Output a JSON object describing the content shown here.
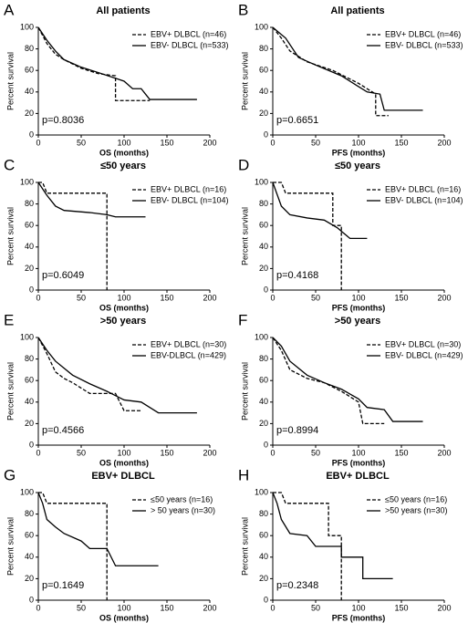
{
  "chart_data": [
    {
      "type": "line",
      "panel_label": "A",
      "title": "All patients",
      "x_label": "OS (months)",
      "y_label": "Percent survival",
      "annotation": "p=0.8036",
      "xlim": [
        0,
        200
      ],
      "ylim": [
        0,
        100
      ],
      "xticks": [
        0,
        50,
        100,
        150,
        200
      ],
      "yticks": [
        0,
        20,
        40,
        60,
        80,
        100
      ],
      "series": [
        {
          "name": "EBV+ DLBCL (n=46)",
          "color": "#000000",
          "dashed": true,
          "x": [
            0,
            10,
            20,
            30,
            50,
            70,
            90,
            90,
            130
          ],
          "values": [
            100,
            85,
            75,
            70,
            62,
            57,
            55,
            32,
            32
          ]
        },
        {
          "name": "EBV- DLBCL (n=533)",
          "color": "#000000",
          "dashed": false,
          "x": [
            0,
            10,
            20,
            30,
            50,
            70,
            100,
            110,
            120,
            125,
            130,
            185
          ],
          "values": [
            100,
            88,
            78,
            70,
            63,
            58,
            50,
            43,
            43,
            38,
            33,
            33
          ]
        }
      ]
    },
    {
      "type": "line",
      "panel_label": "B",
      "title": "All patients",
      "x_label": "PFS (months)",
      "y_label": "Percent survival",
      "annotation": "p=0.6651",
      "xlim": [
        0,
        200
      ],
      "ylim": [
        0,
        100
      ],
      "xticks": [
        0,
        50,
        100,
        150,
        200
      ],
      "yticks": [
        0,
        20,
        40,
        60,
        80,
        100
      ],
      "series": [
        {
          "name": "EBV+ DLBCL (n=46)",
          "color": "#000000",
          "dashed": true,
          "x": [
            0,
            10,
            20,
            40,
            70,
            80,
            100,
            120,
            120,
            135
          ],
          "values": [
            100,
            90,
            78,
            68,
            60,
            56,
            48,
            38,
            18,
            18
          ]
        },
        {
          "name": "EBV- DLBCL (n=533)",
          "color": "#000000",
          "dashed": false,
          "x": [
            0,
            15,
            30,
            50,
            80,
            100,
            110,
            125,
            130,
            175
          ],
          "values": [
            100,
            90,
            72,
            65,
            55,
            45,
            40,
            38,
            23,
            23
          ]
        }
      ]
    },
    {
      "type": "line",
      "panel_label": "C",
      "title": "≤50 years",
      "x_label": "OS (months)",
      "y_label": "Percent survival",
      "annotation": "p=0.6049",
      "xlim": [
        0,
        200
      ],
      "ylim": [
        0,
        100
      ],
      "xticks": [
        0,
        50,
        100,
        150,
        200
      ],
      "yticks": [
        0,
        20,
        40,
        60,
        80,
        100
      ],
      "series": [
        {
          "name": "EBV+ DLBCL (n=16)",
          "color": "#000000",
          "dashed": true,
          "x": [
            0,
            5,
            10,
            80,
            80
          ],
          "values": [
            100,
            100,
            90,
            90,
            0
          ]
        },
        {
          "name": "EBV- DLBCL (n=104)",
          "color": "#000000",
          "dashed": false,
          "x": [
            0,
            10,
            20,
            30,
            60,
            80,
            90,
            125
          ],
          "values": [
            100,
            88,
            78,
            74,
            72,
            70,
            68,
            68
          ]
        }
      ]
    },
    {
      "type": "line",
      "panel_label": "D",
      "title": "≤50 years",
      "x_label": "PFS (months)",
      "y_label": "Percent survival",
      "annotation": "p=0.4168",
      "xlim": [
        0,
        200
      ],
      "ylim": [
        0,
        100
      ],
      "xticks": [
        0,
        50,
        100,
        150,
        200
      ],
      "yticks": [
        0,
        20,
        40,
        60,
        80,
        100
      ],
      "series": [
        {
          "name": "EBV+ DLBCL (n=16)",
          "color": "#000000",
          "dashed": true,
          "x": [
            0,
            10,
            15,
            70,
            70,
            80,
            80
          ],
          "values": [
            100,
            100,
            90,
            90,
            60,
            60,
            0
          ]
        },
        {
          "name": "EBV- DLBCL (n=104)",
          "color": "#000000",
          "dashed": false,
          "x": [
            0,
            10,
            20,
            40,
            60,
            75,
            90,
            110
          ],
          "values": [
            100,
            78,
            70,
            67,
            65,
            58,
            48,
            48
          ]
        }
      ]
    },
    {
      "type": "line",
      "panel_label": "E",
      "title": ">50 years",
      "x_label": "OS (months)",
      "y_label": "Percent survival",
      "annotation": "p=0.4566",
      "xlim": [
        0,
        200
      ],
      "ylim": [
        0,
        100
      ],
      "xticks": [
        0,
        50,
        100,
        150,
        200
      ],
      "yticks": [
        0,
        20,
        40,
        60,
        80,
        100
      ],
      "series": [
        {
          "name": "EBV+ DLBCL (n=30)",
          "color": "#000000",
          "dashed": true,
          "x": [
            0,
            10,
            20,
            30,
            40,
            60,
            90,
            100,
            120
          ],
          "values": [
            100,
            85,
            68,
            62,
            58,
            48,
            48,
            32,
            32
          ]
        },
        {
          "name": "EBV-DLBCL (n=429)",
          "color": "#000000",
          "dashed": false,
          "x": [
            0,
            10,
            20,
            40,
            60,
            80,
            100,
            120,
            130,
            140,
            185
          ],
          "values": [
            100,
            88,
            78,
            65,
            57,
            50,
            42,
            40,
            35,
            30,
            30
          ]
        }
      ]
    },
    {
      "type": "line",
      "panel_label": "F",
      "title": ">50 years",
      "x_label": "PFS (months)",
      "y_label": "Percent survival",
      "annotation": "p=0.8994",
      "xlim": [
        0,
        200
      ],
      "ylim": [
        0,
        100
      ],
      "xticks": [
        0,
        50,
        100,
        150,
        200
      ],
      "yticks": [
        0,
        20,
        40,
        60,
        80,
        100
      ],
      "series": [
        {
          "name": "EBV+ DLBCL (n=30)",
          "color": "#000000",
          "dashed": true,
          "x": [
            0,
            10,
            20,
            40,
            60,
            80,
            100,
            105,
            130
          ],
          "values": [
            100,
            88,
            70,
            62,
            58,
            50,
            40,
            20,
            20
          ]
        },
        {
          "name": "EBV- DLBCL (n=429)",
          "color": "#000000",
          "dashed": false,
          "x": [
            0,
            10,
            20,
            40,
            60,
            80,
            100,
            110,
            130,
            140,
            175
          ],
          "values": [
            100,
            92,
            78,
            65,
            58,
            52,
            43,
            35,
            33,
            22,
            22
          ]
        }
      ]
    },
    {
      "type": "line",
      "panel_label": "G",
      "title": "EBV+ DLBCL",
      "x_label": "OS (months)",
      "y_label": "Percent survival",
      "annotation": "p=0.1649",
      "xlim": [
        0,
        200
      ],
      "ylim": [
        0,
        100
      ],
      "xticks": [
        0,
        50,
        100,
        150,
        200
      ],
      "yticks": [
        0,
        20,
        40,
        60,
        80,
        100
      ],
      "series": [
        {
          "name": "≤50 years (n=16)",
          "color": "#000000",
          "dashed": true,
          "x": [
            0,
            5,
            10,
            80,
            80
          ],
          "values": [
            100,
            100,
            90,
            90,
            0
          ]
        },
        {
          "name": "> 50 years (n=30)",
          "color": "#000000",
          "dashed": false,
          "x": [
            0,
            5,
            10,
            20,
            30,
            50,
            60,
            80,
            90,
            140
          ],
          "values": [
            100,
            90,
            75,
            68,
            62,
            55,
            48,
            48,
            32,
            32
          ]
        }
      ]
    },
    {
      "type": "line",
      "panel_label": "H",
      "title": "EBV+ DLBCL",
      "x_label": "PFS (months)",
      "y_label": "Percent survival",
      "annotation": "p=0.2348",
      "xlim": [
        0,
        200
      ],
      "ylim": [
        0,
        100
      ],
      "xticks": [
        0,
        50,
        100,
        150,
        200
      ],
      "yticks": [
        0,
        20,
        40,
        60,
        80,
        100
      ],
      "series": [
        {
          "name": "≤50 years (n=16)",
          "color": "#000000",
          "dashed": true,
          "x": [
            0,
            10,
            15,
            65,
            65,
            80,
            80
          ],
          "values": [
            100,
            100,
            90,
            90,
            60,
            60,
            0
          ]
        },
        {
          "name": ">50 years (n=30)",
          "color": "#000000",
          "dashed": false,
          "x": [
            0,
            5,
            10,
            20,
            40,
            50,
            80,
            80,
            105,
            105,
            140
          ],
          "values": [
            100,
            90,
            75,
            62,
            60,
            50,
            50,
            40,
            40,
            20,
            20
          ]
        }
      ]
    }
  ]
}
